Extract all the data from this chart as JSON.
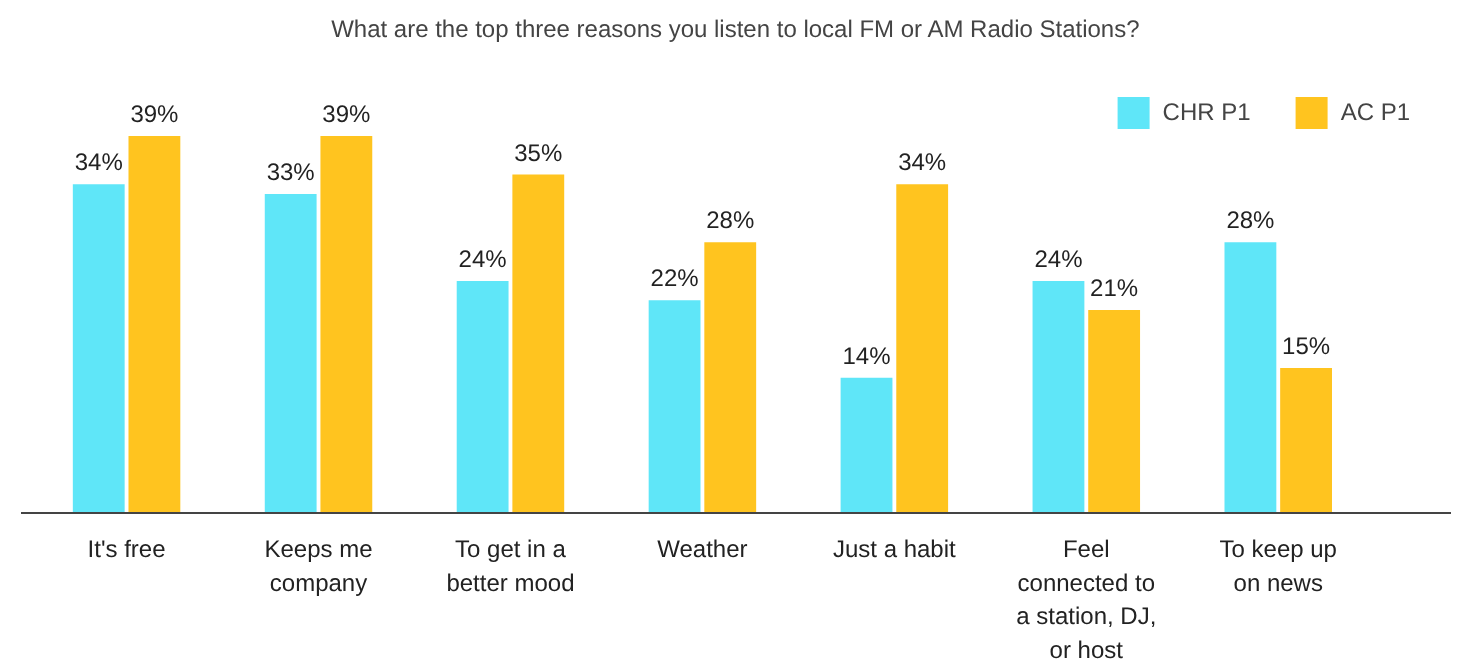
{
  "chart_data": {
    "type": "bar",
    "title": "What are the top three reasons you listen to local FM or AM Radio Stations?",
    "categories": [
      "It's free",
      "Keeps me\ncompany",
      "To get in a\nbetter mood",
      "Weather",
      "Just a habit",
      "Feel\nconnected to\na station, DJ,\nor host",
      "To keep up\non news"
    ],
    "series": [
      {
        "name": "CHR P1",
        "color": "#5fe6f8",
        "values": [
          34,
          33,
          24,
          22,
          14,
          24,
          28
        ],
        "value_labels": [
          "34%",
          "33%",
          "24%",
          "22%",
          "14%",
          "24%",
          "28%"
        ]
      },
      {
        "name": "AC P1",
        "color": "#ffc41f",
        "values": [
          39,
          39,
          35,
          28,
          34,
          21,
          15
        ],
        "value_labels": [
          "39%",
          "39%",
          "35%",
          "28%",
          "34%",
          "21%",
          "15%"
        ]
      }
    ],
    "legend": "top right",
    "grid": false
  }
}
